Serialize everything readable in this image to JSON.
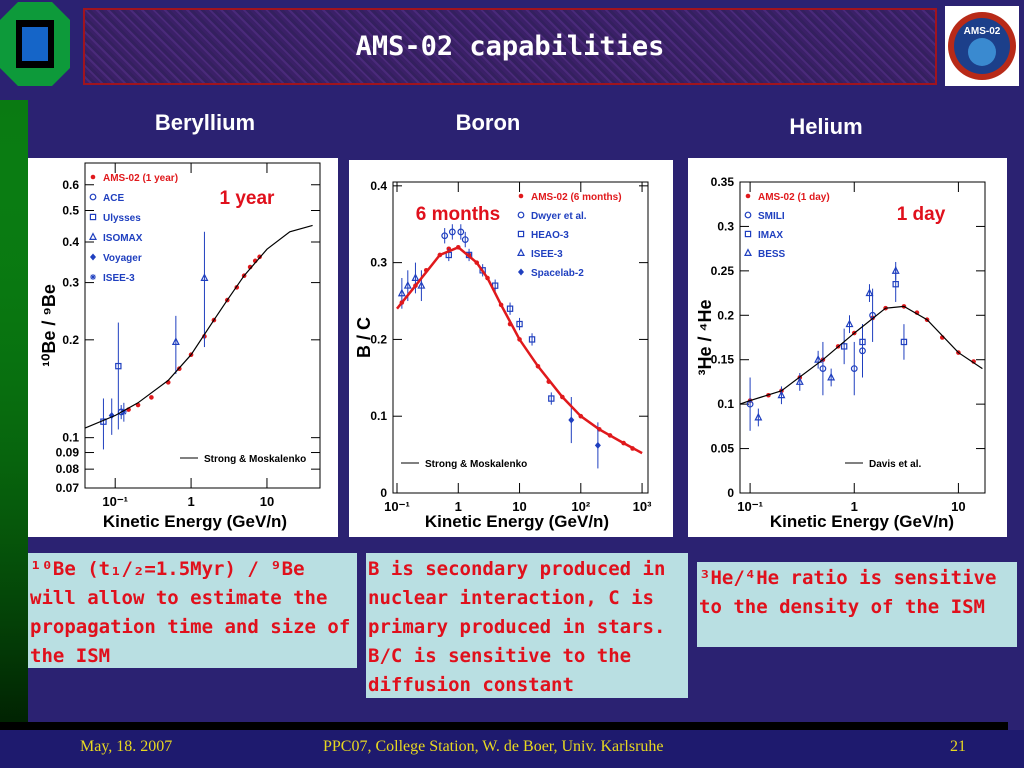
{
  "title": "AMS-02 capabilities",
  "logo_text": "AMS-02",
  "captions": [
    "¹⁰Be (t₁/₂=1.5Myr) / ⁹Be will allow to estimate the propagation time and size of the ISM",
    "B is secondary produced in  nuclear interaction, C is primary produced in stars. B/C is sensitive to the diffusion constant",
    "³He/⁴He ratio is sensitive to the  density of the ISM"
  ],
  "footer": {
    "date": "May, 18. 2007",
    "event": "PPC07, College Station, W. de Boer,  Univ. Karlsruhe",
    "page": "21"
  },
  "chart_data": [
    {
      "type": "line",
      "title": "Beryllium",
      "annotation": "1 year",
      "xlabel": "Kinetic Energy (GeV/n)",
      "ylabel": "¹⁰Be / ⁹Be",
      "xlog": true,
      "ylog": true,
      "legend": "upper left",
      "xlim": [
        0.04,
        50
      ],
      "ylim": [
        0.07,
        0.7
      ],
      "xticks": [
        {
          "value": 0.1,
          "label": "10⁻¹"
        },
        1,
        10
      ],
      "yticks": [
        0.07,
        0.08,
        0.09,
        0.1,
        0.2,
        0.3,
        0.4,
        0.5,
        0.6
      ],
      "series": [
        {
          "name": "AMS-02 (1 year)",
          "kind": "points",
          "marker": "dot",
          "color": "#e0191c",
          "x": [
            0.15,
            0.2,
            0.3,
            0.5,
            0.7,
            1,
            1.5,
            2,
            3,
            4,
            5,
            6,
            7,
            8
          ],
          "values": [
            0.122,
            0.126,
            0.133,
            0.148,
            0.163,
            0.18,
            0.205,
            0.23,
            0.265,
            0.29,
            0.315,
            0.335,
            0.35,
            0.36
          ]
        },
        {
          "name": "ACE",
          "kind": "points",
          "marker": "circle",
          "color": "#1f3fbf",
          "x": [
            0.12
          ],
          "values": [
            0.12
          ],
          "errors": [
            0.006
          ]
        },
        {
          "name": "Ulysses",
          "kind": "points",
          "marker": "square",
          "color": "#1f3fbf",
          "x": [
            0.07,
            0.11
          ],
          "values": [
            0.112,
            0.166
          ],
          "errors": [
            0.02,
            0.06
          ]
        },
        {
          "name": "ISOMAX",
          "kind": "points",
          "marker": "triangle",
          "color": "#1f3fbf",
          "x": [
            0.63,
            1.5
          ],
          "values": [
            0.197,
            0.31
          ],
          "errors": [
            0.04,
            0.12
          ]
        },
        {
          "name": "Voyager",
          "kind": "points",
          "marker": "diamond",
          "color": "#1f3fbf",
          "x": [
            0.09
          ],
          "values": [
            0.117
          ],
          "errors": [
            0.015
          ]
        },
        {
          "name": "ISEE-3",
          "kind": "points",
          "marker": "star",
          "color": "#1f3fbf",
          "x": [
            0.13
          ],
          "values": [
            0.12
          ],
          "errors": [
            0.008
          ]
        },
        {
          "name": "Strong & Moskalenko",
          "kind": "line",
          "color": "#000000",
          "x": [
            0.04,
            0.1,
            0.2,
            0.5,
            1,
            2,
            3,
            5,
            10,
            20,
            40
          ],
          "values": [
            0.107,
            0.117,
            0.128,
            0.15,
            0.18,
            0.23,
            0.265,
            0.315,
            0.38,
            0.43,
            0.45
          ]
        }
      ]
    },
    {
      "type": "line",
      "title": "Boron",
      "annotation": "6 months",
      "xlabel": "Kinetic Energy (GeV/n)",
      "ylabel": "B / C",
      "xlog": true,
      "ylog": false,
      "legend": "upper right",
      "xlim": [
        0.086,
        1250
      ],
      "ylim": [
        0,
        0.405
      ],
      "xticks": [
        {
          "value": 0.1,
          "label": "10⁻¹"
        },
        1,
        10,
        {
          "value": 100,
          "label": "10²"
        },
        {
          "value": 1000,
          "label": "10³"
        }
      ],
      "yticks": [
        0,
        0.1,
        0.2,
        0.3,
        0.4
      ],
      "series": [
        {
          "name": "AMS-02 (6 months)",
          "kind": "points",
          "marker": "dot",
          "color": "#e0191c",
          "x": [
            0.12,
            0.2,
            0.3,
            0.5,
            0.7,
            1,
            1.5,
            2,
            3,
            5,
            7,
            10,
            20,
            30,
            50,
            100,
            200,
            300,
            500,
            700
          ],
          "values": [
            0.248,
            0.27,
            0.29,
            0.31,
            0.318,
            0.32,
            0.31,
            0.3,
            0.28,
            0.245,
            0.22,
            0.2,
            0.165,
            0.145,
            0.125,
            0.1,
            0.083,
            0.075,
            0.065,
            0.058
          ]
        },
        {
          "name": "Dwyer et al.",
          "kind": "points",
          "marker": "circle",
          "color": "#1f3fbf",
          "x": [
            0.6,
            0.8,
            1.1,
            1.3
          ],
          "values": [
            0.335,
            0.34,
            0.34,
            0.33
          ],
          "errors": [
            0.01,
            0.01,
            0.01,
            0.01
          ]
        },
        {
          "name": "HEAO-3",
          "kind": "points",
          "marker": "square",
          "color": "#1f3fbf",
          "x": [
            0.7,
            1.5,
            2.5,
            4,
            7,
            10,
            16,
            33
          ],
          "values": [
            0.31,
            0.31,
            0.29,
            0.27,
            0.24,
            0.22,
            0.2,
            0.123
          ],
          "errors": [
            0.008,
            0.008,
            0.008,
            0.008,
            0.008,
            0.008,
            0.008,
            0.008
          ]
        },
        {
          "name": "ISEE-3",
          "kind": "points",
          "marker": "triangle",
          "color": "#1f3fbf",
          "x": [
            0.12,
            0.15,
            0.2,
            0.25
          ],
          "values": [
            0.26,
            0.27,
            0.28,
            0.27
          ],
          "errors": [
            0.02,
            0.02,
            0.02,
            0.02
          ]
        },
        {
          "name": "Spacelab-2",
          "kind": "points",
          "marker": "diamond",
          "color": "#1f3fbf",
          "x": [
            70,
            190
          ],
          "values": [
            0.095,
            0.062
          ],
          "errors": [
            0.03,
            0.03
          ]
        },
        {
          "name": "Strong & Moskalenko",
          "kind": "line",
          "color": "#e0191c",
          "x": [
            0.1,
            0.2,
            0.5,
            1,
            2,
            3,
            5,
            10,
            20,
            50,
            100,
            200,
            500,
            1000
          ],
          "values": [
            0.24,
            0.27,
            0.31,
            0.32,
            0.3,
            0.28,
            0.245,
            0.2,
            0.165,
            0.125,
            0.1,
            0.083,
            0.065,
            0.052
          ]
        }
      ]
    },
    {
      "type": "line",
      "title": "Helium",
      "annotation": "1 day",
      "xlabel": "Kinetic Energy (GeV/n)",
      "ylabel": "³He / ⁴He",
      "xlog": true,
      "ylog": false,
      "legend": "upper left",
      "xlim": [
        0.08,
        18
      ],
      "ylim": [
        0,
        0.35
      ],
      "xticks": [
        {
          "value": 0.1,
          "label": "10⁻¹"
        },
        1,
        10
      ],
      "yticks": [
        0,
        0.05,
        0.1,
        0.15,
        0.2,
        0.25,
        0.3,
        0.35
      ],
      "series": [
        {
          "name": "AMS-02 (1 day)",
          "kind": "points",
          "marker": "dot",
          "color": "#e0191c",
          "x": [
            0.1,
            0.15,
            0.2,
            0.3,
            0.5,
            0.7,
            1,
            1.5,
            2,
            3,
            4,
            5,
            7,
            10,
            14
          ],
          "values": [
            0.104,
            0.11,
            0.115,
            0.13,
            0.15,
            0.165,
            0.18,
            0.197,
            0.208,
            0.21,
            0.203,
            0.195,
            0.175,
            0.158,
            0.148
          ]
        },
        {
          "name": "SMILI",
          "kind": "points",
          "marker": "circle",
          "color": "#1f3fbf",
          "x": [
            0.1,
            0.5,
            1,
            1.2,
            1.5
          ],
          "values": [
            0.1,
            0.14,
            0.14,
            0.16,
            0.2
          ],
          "errors": [
            0.03,
            0.03,
            0.03,
            0.03,
            0.03
          ]
        },
        {
          "name": "IMAX",
          "kind": "points",
          "marker": "square",
          "color": "#1f3fbf",
          "x": [
            0.8,
            1.2,
            2.5,
            3
          ],
          "values": [
            0.165,
            0.17,
            0.235,
            0.17
          ],
          "errors": [
            0.02,
            0.02,
            0.02,
            0.02
          ]
        },
        {
          "name": "BESS",
          "kind": "points",
          "marker": "triangle",
          "color": "#1f3fbf",
          "x": [
            0.12,
            0.2,
            0.3,
            0.45,
            0.6,
            0.9,
            1.4,
            2.5
          ],
          "values": [
            0.085,
            0.11,
            0.125,
            0.15,
            0.13,
            0.19,
            0.225,
            0.25
          ],
          "errors": [
            0.01,
            0.01,
            0.01,
            0.01,
            0.01,
            0.01,
            0.01,
            0.01
          ]
        },
        {
          "name": "Davis et al.",
          "kind": "line",
          "color": "#000000",
          "x": [
            0.08,
            0.1,
            0.2,
            0.5,
            1,
            2,
            3,
            5,
            10,
            17
          ],
          "values": [
            0.1,
            0.104,
            0.115,
            0.15,
            0.18,
            0.208,
            0.21,
            0.195,
            0.158,
            0.14
          ]
        }
      ]
    }
  ]
}
